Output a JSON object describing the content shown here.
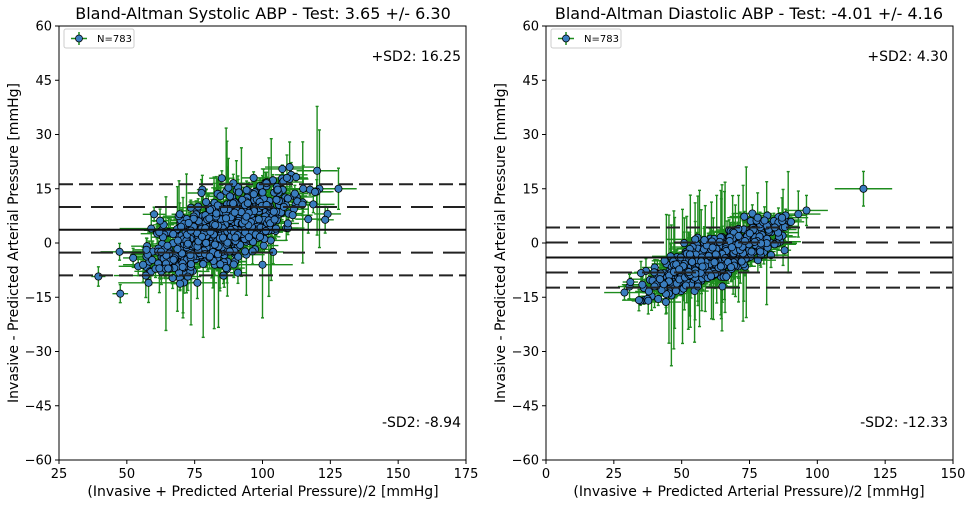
{
  "chart_data": [
    {
      "type": "scatter",
      "title": "Bland-Altman Systolic ABP - Test: 3.65 +/- 6.30",
      "xlabel": "(Invasive + Predicted Arterial Pressure)/2 [mmHg]",
      "ylabel": "Invasive - Predicted Arterial Pressure [mmHg]",
      "xlim": [
        25,
        175
      ],
      "ylim": [
        -60,
        60
      ],
      "xticks": [
        25,
        50,
        75,
        100,
        125,
        150,
        175
      ],
      "yticks": [
        -60,
        -45,
        -30,
        -15,
        0,
        15,
        30,
        45,
        60
      ],
      "legend": {
        "label": "N=783",
        "placement": "top-left"
      },
      "annotations": {
        "upper": "+SD2: 16.25",
        "lower": "-SD2: -8.94"
      },
      "lines": {
        "mean": 3.65,
        "upper_sd2": 16.25,
        "lower_sd2": -8.94,
        "inner_upper": 9.95,
        "inner_lower": -2.65
      },
      "point_cloud": {
        "n": 783,
        "x_center": 85,
        "x_spread": 13,
        "slope": 0.32,
        "y_scatter": 4.5
      },
      "highlight_points": [
        {
          "x": 56,
          "y": -6
        },
        {
          "x": 57,
          "y": -9
        },
        {
          "x": 58,
          "y": -11
        },
        {
          "x": 59,
          "y": 4
        },
        {
          "x": 62,
          "y": -7
        },
        {
          "x": 76,
          "y": -11
        },
        {
          "x": 100,
          "y": -6
        },
        {
          "x": 109,
          "y": 18
        },
        {
          "x": 110,
          "y": 21
        },
        {
          "x": 115,
          "y": 15
        },
        {
          "x": 128,
          "y": 15
        },
        {
          "x": 100,
          "y": 14
        }
      ],
      "series_colors": {
        "marker": "#3a7dbf",
        "error_bar": "#1e8c1e",
        "mean_line": "#111111",
        "sd_line": "#222222"
      }
    },
    {
      "type": "scatter",
      "title": "Bland-Altman Diastolic ABP - Test: -4.01 +/- 4.16",
      "xlabel": "(Invasive + Predicted Arterial Pressure)/2 [mmHg]",
      "ylabel": "Invasive - Predicted Arterial Pressure [mmHg]",
      "xlim": [
        0,
        150
      ],
      "ylim": [
        -60,
        60
      ],
      "xticks": [
        0,
        25,
        50,
        75,
        100,
        125,
        150
      ],
      "yticks": [
        -60,
        -45,
        -30,
        -15,
        0,
        15,
        30,
        45,
        60
      ],
      "legend": {
        "label": "N=783",
        "placement": "top-left"
      },
      "annotations": {
        "upper": "+SD2: 4.30",
        "lower": "-SD2: -12.33"
      },
      "lines": {
        "mean": -4.01,
        "upper_sd2": 4.3,
        "lower_sd2": -12.33,
        "inner_upper": 0.15,
        "inner_lower": -8.17
      },
      "point_cloud": {
        "n": 783,
        "x_center": 62,
        "x_spread": 11,
        "slope": 0.33,
        "y_scatter": 2.6
      },
      "highlight_points": [
        {
          "x": 40,
          "y": -12
        },
        {
          "x": 42,
          "y": -10
        },
        {
          "x": 55,
          "y": 1
        },
        {
          "x": 56,
          "y": -12
        },
        {
          "x": 65,
          "y": -12
        },
        {
          "x": 78,
          "y": 7
        },
        {
          "x": 87,
          "y": 7
        },
        {
          "x": 93,
          "y": 8
        },
        {
          "x": 96,
          "y": 9
        },
        {
          "x": 117,
          "y": 15
        }
      ],
      "series_colors": {
        "marker": "#3a7dbf",
        "error_bar": "#1e8c1e",
        "mean_line": "#111111",
        "sd_line": "#222222"
      }
    }
  ]
}
